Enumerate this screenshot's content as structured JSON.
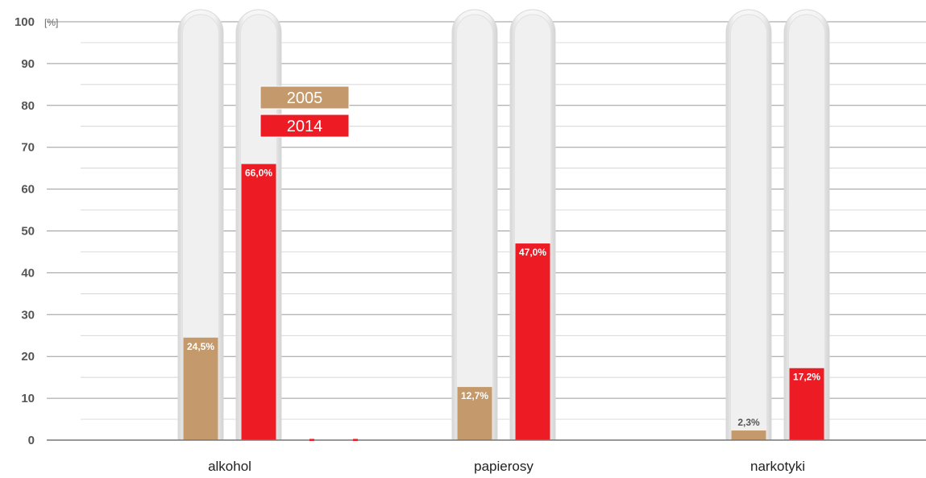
{
  "chart_data": {
    "type": "bar",
    "unit_label": "[%]",
    "ylim": [
      0,
      100
    ],
    "yticks": [
      0,
      10,
      20,
      30,
      40,
      50,
      60,
      70,
      80,
      90,
      100
    ],
    "categories": [
      "alkohol",
      "papierosy",
      "narkotyki"
    ],
    "series": [
      {
        "name": "2005",
        "values": [
          24.5,
          12.7,
          2.3
        ],
        "labels": [
          "24,5%",
          "12,7%",
          "2,3%"
        ],
        "color": "#c49a6c"
      },
      {
        "name": "2014",
        "values": [
          66.0,
          47.0,
          17.2
        ],
        "labels": [
          "66,0%",
          "47,0%",
          "17,2%"
        ],
        "color": "#ed1c24"
      }
    ],
    "legend": [
      "2005",
      "2014"
    ],
    "grid": true
  }
}
